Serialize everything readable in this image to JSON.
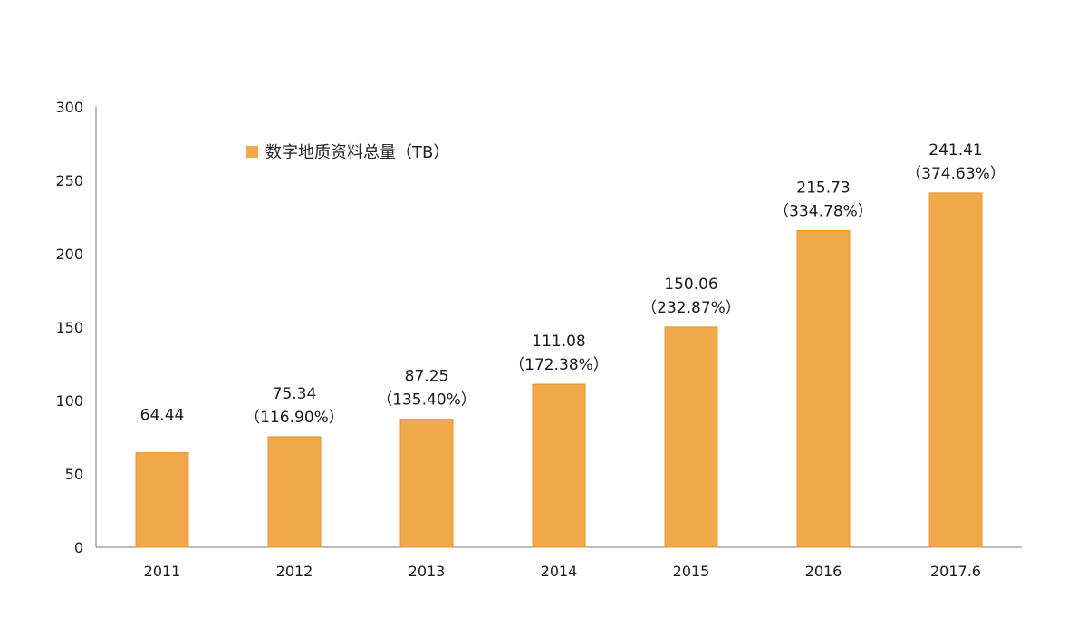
{
  "chart_data": {
    "type": "bar",
    "categories": [
      "2011",
      "2012",
      "2013",
      "2014",
      "2015",
      "2016",
      "2017.6"
    ],
    "series": [
      {
        "name": "数字地质资料总量（TB）",
        "values": [
          64.44,
          75.34,
          87.25,
          111.08,
          150.06,
          215.73,
          241.41
        ],
        "value_labels": [
          "64.44",
          "75.34",
          "87.25",
          "111.08",
          "150.06",
          "215.73",
          "241.41"
        ],
        "growth_labels": [
          "",
          "（116.90%）",
          "（135.40%）",
          "（172.38%）",
          "（232.87%）",
          "（334.78%）",
          "（374.63%）"
        ],
        "color": "#F0A848"
      }
    ],
    "ylim": [
      0,
      300
    ],
    "yticks": [
      0,
      50,
      100,
      150,
      200,
      250,
      300
    ],
    "ytick_labels": [
      "0",
      "50",
      "100",
      "150",
      "200",
      "250",
      "300"
    ],
    "legend_position": "top-left",
    "grid": false,
    "axis_color": "#777777"
  }
}
